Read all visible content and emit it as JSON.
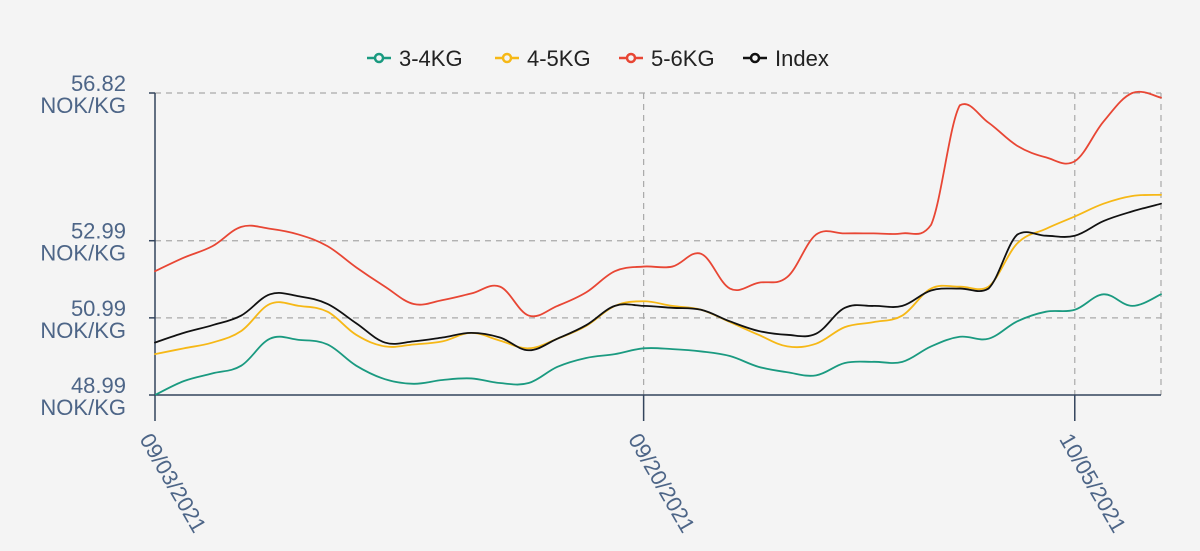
{
  "chart_data": {
    "type": "line",
    "title": "",
    "xlabel": "",
    "ylabel": "",
    "legend_position": "top-center",
    "grid": true,
    "x": [
      "2021-09-03",
      "2021-09-04",
      "2021-09-05",
      "2021-09-06",
      "2021-09-07",
      "2021-09-08",
      "2021-09-09",
      "2021-09-10",
      "2021-09-11",
      "2021-09-12",
      "2021-09-13",
      "2021-09-14",
      "2021-09-15",
      "2021-09-16",
      "2021-09-17",
      "2021-09-18",
      "2021-09-19",
      "2021-09-20",
      "2021-09-21",
      "2021-09-22",
      "2021-09-23",
      "2021-09-24",
      "2021-09-25",
      "2021-09-26",
      "2021-09-27",
      "2021-09-28",
      "2021-09-29",
      "2021-09-30",
      "2021-10-01",
      "2021-10-02",
      "2021-10-03",
      "2021-10-04",
      "2021-10-05",
      "2021-10-06",
      "2021-10-07",
      "2021-10-08"
    ],
    "xlim": [
      "2021-09-03",
      "2021-10-08"
    ],
    "xticks": [
      {
        "date": "2021-09-03",
        "label": "09/03/2021"
      },
      {
        "date": "2021-09-20",
        "label": "09/20/2021"
      },
      {
        "date": "2021-10-05",
        "label": "10/05/2021"
      }
    ],
    "ylim": [
      48.99,
      56.82
    ],
    "yticks": [
      {
        "value": 48.99,
        "label": "48.99",
        "unit": "NOK/KG"
      },
      {
        "value": 50.99,
        "label": "50.99",
        "unit": "NOK/KG"
      },
      {
        "value": 52.99,
        "label": "52.99",
        "unit": "NOK/KG"
      },
      {
        "value": 56.82,
        "label": "56.82",
        "unit": "NOK/KG"
      }
    ],
    "series": [
      {
        "name": "3-4KG",
        "color": "#1a9a80",
        "values": [
          48.99,
          49.35,
          49.55,
          49.75,
          50.45,
          50.42,
          50.3,
          49.75,
          49.4,
          49.28,
          49.38,
          49.42,
          49.3,
          49.3,
          49.72,
          49.95,
          50.05,
          50.2,
          50.18,
          50.12,
          50.0,
          49.72,
          49.58,
          49.5,
          49.82,
          49.85,
          49.85,
          50.25,
          50.5,
          50.45,
          50.9,
          51.15,
          51.2,
          51.6,
          51.3,
          51.6
        ]
      },
      {
        "name": "4-5KG",
        "color": "#f6b816",
        "values": [
          50.05,
          50.2,
          50.35,
          50.65,
          51.35,
          51.3,
          51.15,
          50.55,
          50.25,
          50.3,
          50.38,
          50.6,
          50.4,
          50.2,
          50.45,
          50.78,
          51.3,
          51.42,
          51.3,
          51.2,
          50.88,
          50.55,
          50.25,
          50.32,
          50.75,
          50.88,
          51.05,
          51.75,
          51.8,
          51.8,
          52.92,
          53.3,
          53.62,
          53.95,
          54.15,
          54.18
        ]
      },
      {
        "name": "5-6KG",
        "color": "#e84634",
        "values": [
          52.2,
          52.55,
          52.85,
          53.35,
          53.3,
          53.15,
          52.85,
          52.3,
          51.8,
          51.35,
          51.45,
          51.62,
          51.8,
          51.05,
          51.3,
          51.65,
          52.2,
          52.32,
          52.32,
          52.65,
          51.75,
          51.9,
          52.05,
          53.15,
          53.18,
          53.18,
          53.18,
          53.4,
          56.5,
          56.05,
          55.45,
          55.15,
          55.05,
          56.08,
          56.82,
          56.7
        ]
      },
      {
        "name": "Index",
        "color": "#111111",
        "values": [
          50.35,
          50.6,
          50.8,
          51.05,
          51.6,
          51.55,
          51.35,
          50.85,
          50.35,
          50.38,
          50.48,
          50.6,
          50.48,
          50.15,
          50.45,
          50.8,
          51.3,
          51.3,
          51.25,
          51.2,
          50.9,
          50.65,
          50.55,
          50.58,
          51.25,
          51.3,
          51.3,
          51.7,
          51.75,
          51.75,
          53.15,
          53.12,
          53.12,
          53.5,
          53.75,
          53.95
        ]
      }
    ]
  }
}
